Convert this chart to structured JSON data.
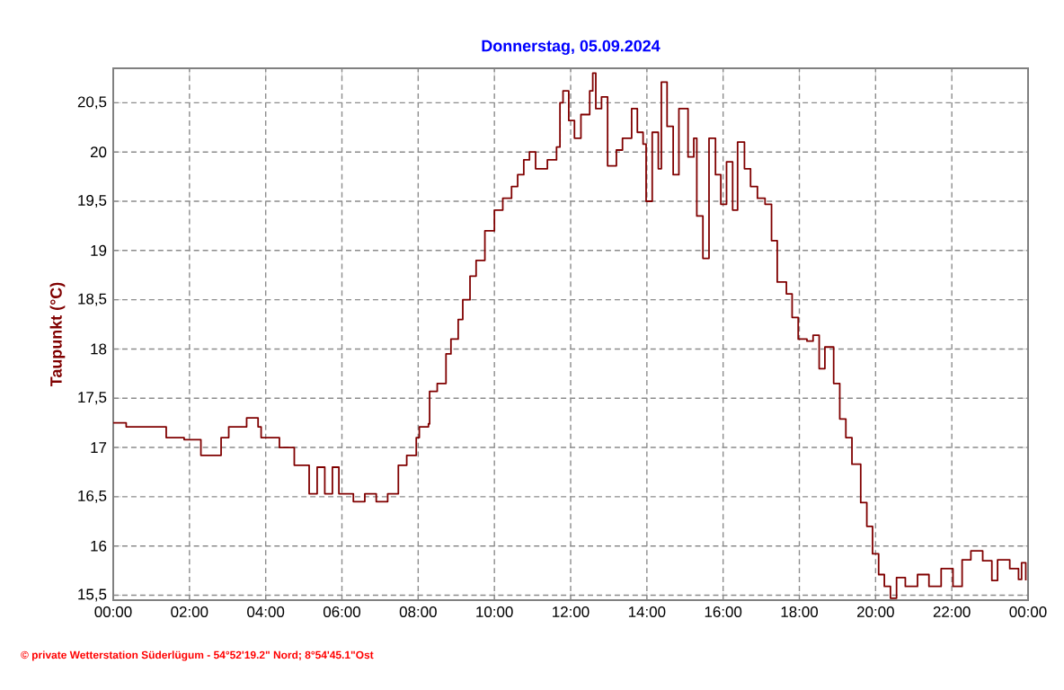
{
  "chart_data": {
    "type": "step",
    "title": "Donnerstag, 05.09.2024",
    "ylabel": "Taupunkt  (°C)",
    "annotations": [
      "© private Wetterstation Süderlügum  -  54°52'19.2\" Nord; 8°54'45.1\"Ost"
    ],
    "color": "#800000",
    "grid": true,
    "xlim": [
      0,
      24
    ],
    "ylim": [
      15.45,
      20.85
    ],
    "xticks": [
      {
        "value": 0,
        "label": "00:00"
      },
      {
        "value": 2,
        "label": "02:00"
      },
      {
        "value": 4,
        "label": "04:00"
      },
      {
        "value": 6,
        "label": "06:00"
      },
      {
        "value": 8,
        "label": "08:00"
      },
      {
        "value": 10,
        "label": "10:00"
      },
      {
        "value": 12,
        "label": "12:00"
      },
      {
        "value": 14,
        "label": "14:00"
      },
      {
        "value": 16,
        "label": "16:00"
      },
      {
        "value": 18,
        "label": "18:00"
      },
      {
        "value": 20,
        "label": "20:00"
      },
      {
        "value": 22,
        "label": "22:00"
      },
      {
        "value": 24,
        "label": "00:00"
      }
    ],
    "yticks": [
      {
        "value": 15.5,
        "label": "15,5"
      },
      16,
      {
        "value": 16.5,
        "label": "16,5"
      },
      17,
      {
        "value": 17.5,
        "label": "17,5"
      },
      18,
      {
        "value": 18.5,
        "label": "18,5"
      },
      19,
      {
        "value": 19.5,
        "label": "19,5"
      },
      20,
      {
        "value": 20.5,
        "label": "20,5"
      }
    ],
    "x": [
      0,
      0.34,
      1.39,
      1.86,
      2.3,
      2.83,
      2.88,
      3.03,
      3.5,
      3.8,
      3.88,
      4.05,
      4.36,
      4.75,
      5.14,
      5.35,
      5.55,
      5.75,
      5.92,
      6.3,
      6.6,
      6.9,
      7.2,
      7.48,
      7.7,
      7.95,
      8.03,
      8.27,
      8.3,
      8.5,
      8.73,
      8.86,
      9.05,
      9.17,
      9.36,
      9.52,
      9.75,
      10.0,
      10.22,
      10.45,
      10.61,
      10.77,
      10.92,
      11.08,
      11.39,
      11.63,
      11.72,
      11.8,
      11.95,
      12.1,
      12.27,
      12.5,
      12.58,
      12.66,
      12.81,
      12.97,
      13.2,
      13.36,
      13.6,
      13.75,
      13.9,
      13.98,
      14.14,
      14.3,
      14.38,
      14.53,
      14.69,
      14.84,
      15.08,
      15.23,
      15.31,
      15.47,
      15.63,
      15.8,
      15.94,
      16.09,
      16.25,
      16.38,
      16.56,
      16.72,
      16.9,
      17.1,
      17.27,
      17.42,
      17.66,
      17.81,
      17.97,
      18.2,
      18.36,
      18.52,
      18.67,
      18.9,
      19.06,
      19.22,
      19.38,
      19.61,
      19.77,
      19.92,
      20.08,
      20.23,
      20.39,
      20.55,
      20.78,
      21.1,
      21.4,
      21.72,
      22.03,
      22.27,
      22.5,
      22.81,
      23.05,
      23.2,
      23.52,
      23.75,
      23.83,
      23.94
    ],
    "values": [
      17.25,
      17.21,
      17.1,
      17.08,
      16.92,
      17.1,
      17.1,
      17.21,
      17.3,
      17.21,
      17.1,
      17.1,
      17.0,
      16.82,
      16.53,
      16.8,
      16.53,
      16.8,
      16.53,
      16.45,
      16.53,
      16.45,
      16.53,
      16.82,
      16.92,
      17.1,
      17.21,
      17.24,
      17.57,
      17.65,
      17.95,
      18.1,
      18.3,
      18.5,
      18.74,
      18.9,
      19.2,
      19.41,
      19.53,
      19.65,
      19.77,
      19.92,
      20.0,
      19.83,
      19.92,
      20.05,
      20.5,
      20.62,
      20.32,
      20.14,
      20.38,
      20.62,
      20.8,
      20.44,
      20.56,
      19.86,
      20.02,
      20.14,
      20.44,
      20.2,
      20.08,
      19.5,
      20.2,
      19.83,
      20.71,
      20.26,
      19.77,
      20.44,
      19.95,
      20.14,
      19.35,
      18.92,
      20.14,
      19.77,
      19.47,
      19.9,
      19.41,
      20.1,
      19.83,
      19.65,
      19.53,
      19.47,
      19.1,
      18.68,
      18.56,
      18.32,
      18.1,
      18.08,
      18.14,
      17.8,
      18.02,
      17.65,
      17.29,
      17.1,
      16.83,
      16.44,
      16.2,
      15.92,
      15.71,
      15.59,
      15.47,
      15.68,
      15.59,
      15.71,
      15.59,
      15.77,
      15.59,
      15.86,
      15.95,
      15.85,
      15.65,
      15.86,
      15.77,
      15.66,
      15.83,
      15.65
    ]
  }
}
